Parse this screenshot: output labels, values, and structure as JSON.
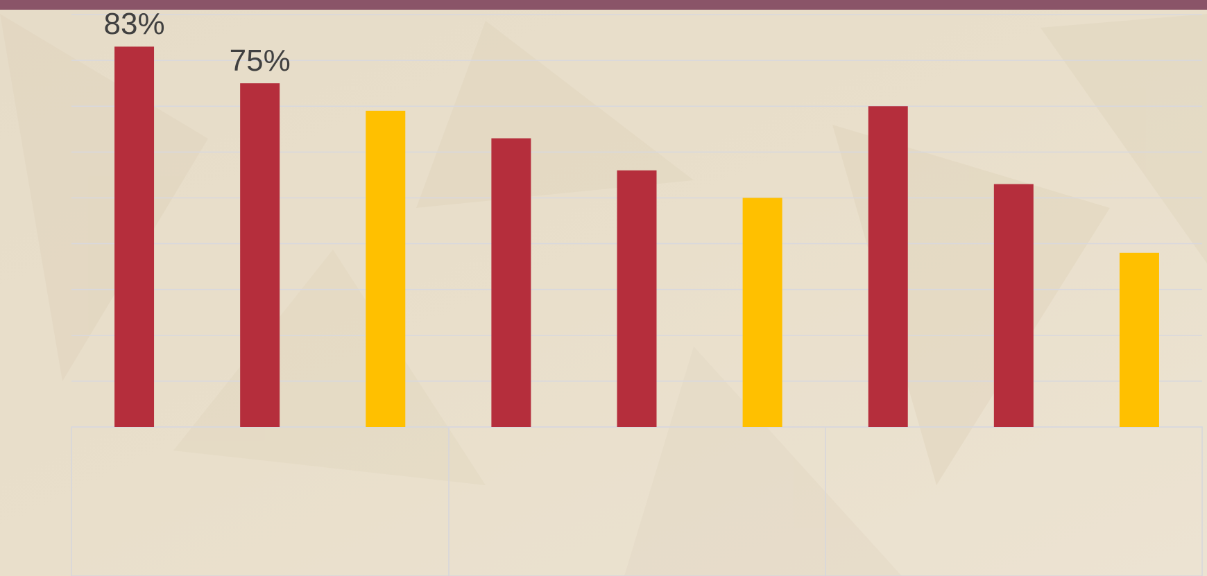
{
  "chart_data": {
    "type": "bar",
    "categories": [
      null,
      null,
      null,
      null,
      null,
      null,
      null,
      null,
      null
    ],
    "values": [
      83,
      75,
      69,
      63,
      56,
      50,
      70,
      53,
      38
    ],
    "value_labels": [
      "83%",
      "75%",
      null,
      null,
      null,
      null,
      null,
      null,
      null
    ],
    "colors": [
      "#b52e3c",
      "#b52e3c",
      "#ffc000",
      "#b52e3c",
      "#b52e3c",
      "#ffc000",
      "#b52e3c",
      "#b52e3c",
      "#ffc000"
    ],
    "ylim": [
      0,
      90
    ],
    "yticks": [
      0,
      10,
      20,
      30,
      40,
      50,
      60,
      70,
      80,
      90
    ],
    "grid": true
  }
}
